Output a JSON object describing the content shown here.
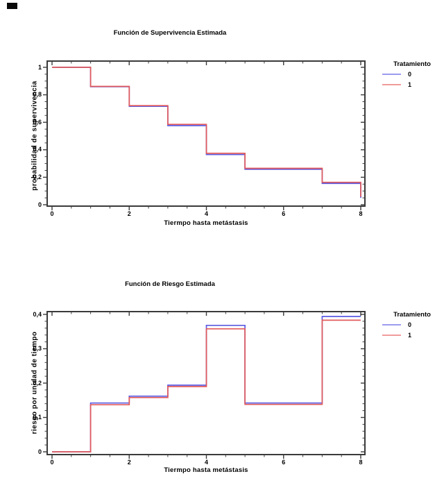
{
  "page": {
    "background": "#ffffff"
  },
  "decorations": {
    "corner_mark_icon": "black-rectangle-mark"
  },
  "chart_data": [
    {
      "type": "line",
      "step": true,
      "title": "Función de Supervivencia Estimada",
      "xlabel": "Tiermpo hasta metástasis",
      "ylabel": "probabilidad de supervivencia",
      "xlim": [
        0,
        8
      ],
      "ylim": [
        0,
        1
      ],
      "grid": false,
      "x_major_ticks": [
        0,
        2,
        4,
        6,
        8
      ],
      "x_tick_labels": [
        "0",
        "2",
        "4",
        "6",
        "8"
      ],
      "x_minor_step": 0.5,
      "y_major_ticks": [
        0,
        0.2,
        0.4,
        0.6,
        0.8,
        1
      ],
      "y_tick_labels": [
        "0",
        "0,2",
        "0,4",
        "0,6",
        "0,8",
        "1"
      ],
      "y_minor_step": 0.05,
      "legend": {
        "title": "Tratamiento",
        "position": "right"
      },
      "series": [
        {
          "name": "0",
          "color": "#5B5BE2",
          "legend_color": "#9B9BF0",
          "breaks": [
            0,
            1,
            2,
            3,
            4,
            5,
            7,
            8
          ],
          "values": [
            1.0,
            0.859,
            0.716,
            0.576,
            0.365,
            0.258,
            0.155
          ],
          "end_drop_to": 0.05
        },
        {
          "name": "1",
          "color": "#E25B5B",
          "legend_color": "#F09B9B",
          "breaks": [
            0,
            1,
            2,
            3,
            4,
            5,
            7,
            8
          ],
          "values": [
            1.0,
            0.861,
            0.721,
            0.585,
            0.374,
            0.265,
            0.163
          ],
          "end_drop_to": 0.058
        }
      ]
    },
    {
      "type": "line",
      "step": true,
      "title": "Función de Riesgo Estimada",
      "xlabel": "Tiermpo hasta metástasis",
      "ylabel": "riesgo por unidad de tiempo",
      "xlim": [
        0,
        8
      ],
      "ylim": [
        0,
        0.4
      ],
      "grid": false,
      "x_major_ticks": [
        0,
        2,
        4,
        6,
        8
      ],
      "x_tick_labels": [
        "0",
        "2",
        "4",
        "6",
        "8"
      ],
      "x_minor_step": 0.5,
      "y_major_ticks": [
        0,
        0.1,
        0.2,
        0.3,
        0.4
      ],
      "y_tick_labels": [
        "0",
        "0,1",
        "0,2",
        "0,3",
        "0,4"
      ],
      "y_minor_step": 0.02,
      "legend": {
        "title": "Tratamiento",
        "position": "right"
      },
      "series": [
        {
          "name": "0",
          "color": "#5B5BE2",
          "legend_color": "#9B9BF0",
          "breaks": [
            0,
            1,
            2,
            3,
            4,
            5,
            7,
            8
          ],
          "values": [
            0.0,
            0.142,
            0.162,
            0.194,
            0.368,
            0.142,
            0.394
          ],
          "end_drop_to": null
        },
        {
          "name": "1",
          "color": "#E25B5B",
          "legend_color": "#F09B9B",
          "breaks": [
            0,
            1,
            2,
            3,
            4,
            5,
            7,
            8
          ],
          "values": [
            0.0,
            0.137,
            0.158,
            0.19,
            0.358,
            0.138,
            0.383
          ],
          "end_drop_to": null
        }
      ]
    }
  ]
}
